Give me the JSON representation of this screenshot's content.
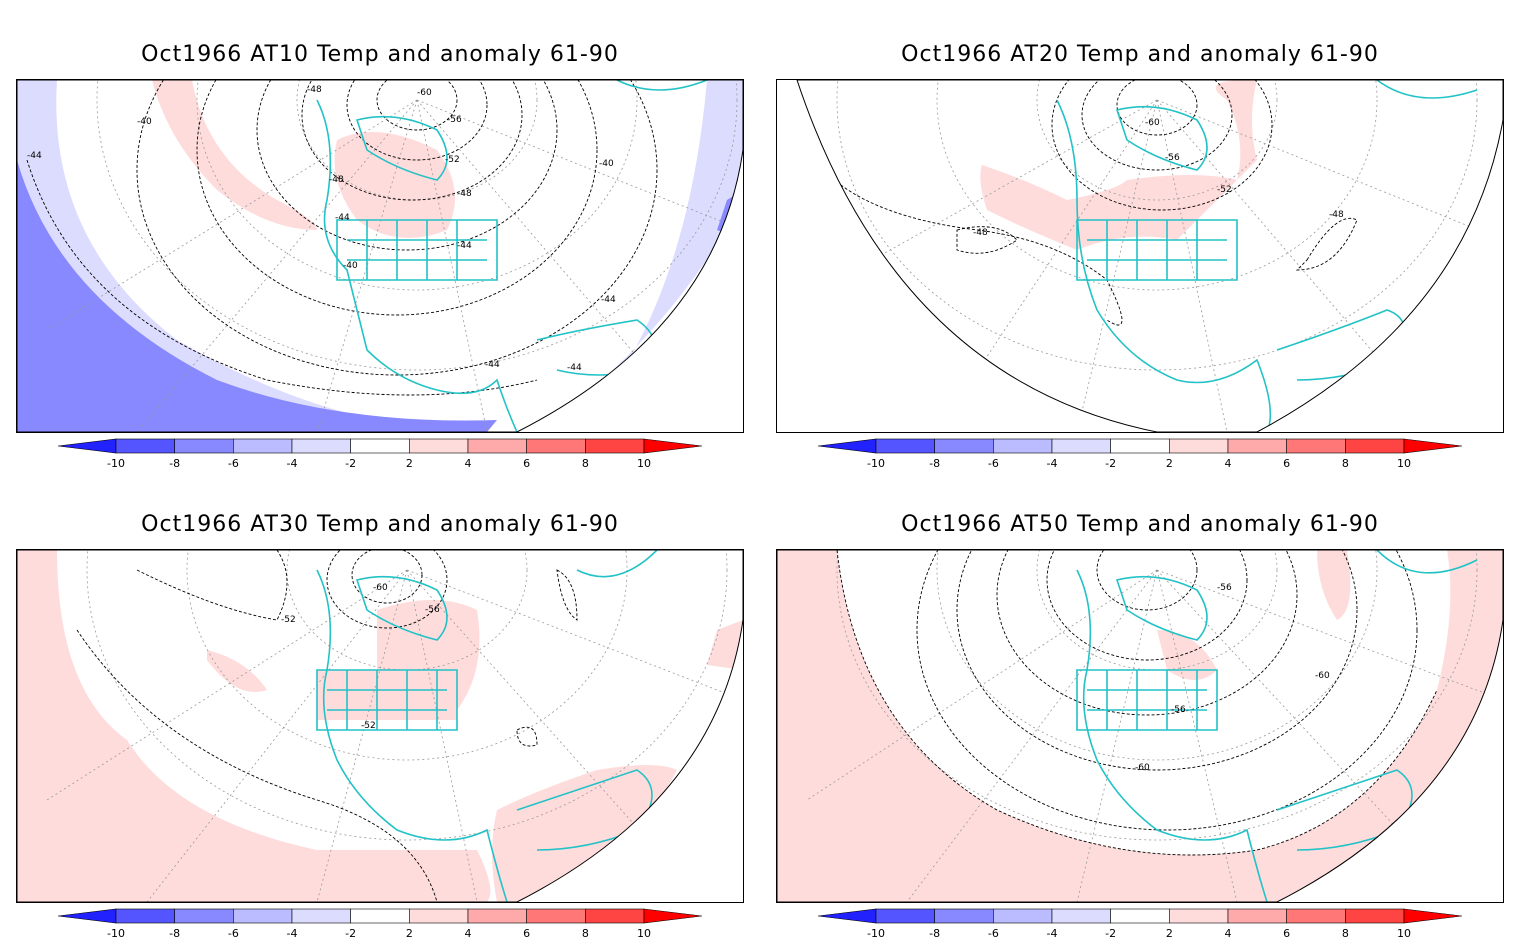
{
  "colors": {
    "coast": "#22c2c6",
    "neg10": "#2222ff",
    "neg8": "#5555ff",
    "neg6": "#8888ff",
    "neg4": "#bbbbff",
    "neg2": "#dcdcff",
    "pos2": "#ffdcdc",
    "pos4": "#ffaaaa",
    "pos6": "#ff7777",
    "pos8": "#ff4444",
    "pos10": "#ff0000",
    "contour": "#000000",
    "grid": "#999999"
  },
  "colorbar": {
    "ticks": [
      "-10",
      "-8",
      "-6",
      "-4",
      "-2",
      "2",
      "4",
      "6",
      "8",
      "10"
    ]
  },
  "panels": [
    {
      "title": "Oct1966 AT10 Temp and anomaly 61-90",
      "contour_labels": [
        "-48",
        "-60",
        "-56",
        "-40",
        "-44",
        "-52",
        "-48",
        "-48",
        "-44",
        "-40",
        "-44",
        "-40",
        "-44",
        "-44",
        "-44"
      ]
    },
    {
      "title": "Oct1966 AT20 Temp and anomaly 61-90",
      "contour_labels": [
        "-60",
        "-56",
        "-52",
        "-48",
        "-48"
      ]
    },
    {
      "title": "Oct1966 AT30 Temp and anomaly 61-90",
      "contour_labels": [
        "-60",
        "-56",
        "-52",
        "-52"
      ]
    },
    {
      "title": "Oct1966 AT50 Temp and anomaly 61-90",
      "contour_labels": [
        "-56",
        "-60",
        "-56",
        "-60"
      ]
    }
  ]
}
